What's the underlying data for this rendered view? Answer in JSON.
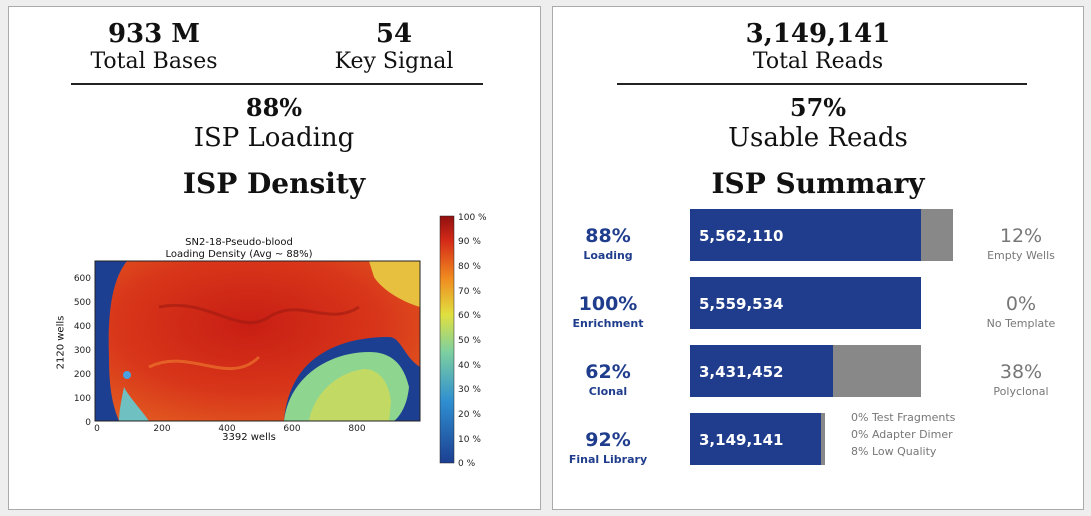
{
  "left_panel": {
    "total_bases": {
      "value": "933 M",
      "label": "Total Bases"
    },
    "key_signal": {
      "value": "54",
      "label": "Key Signal"
    },
    "isp_loading": {
      "value": "88%",
      "label": "ISP Loading"
    },
    "density_title": "ISP Density",
    "heatmap": {
      "title_line1": "SN2-18-Pseudo-blood",
      "title_line2": "Loading Density (Avg ~ 88%)",
      "xlabel": "3392 wells",
      "ylabel": "2120 wells",
      "x_ticks": [
        "0",
        "200",
        "400",
        "600",
        "800"
      ],
      "y_ticks": [
        "0",
        "100",
        "200",
        "300",
        "400",
        "500",
        "600"
      ],
      "colorbar_ticks": [
        "0 %",
        "10 %",
        "20 %",
        "30 %",
        "40 %",
        "50 %",
        "60 %",
        "70 %",
        "80 %",
        "90 %",
        "100 %"
      ],
      "colors": {
        "high": "#d42a18",
        "mid": "#f0b030",
        "low": "#7ed0a0",
        "empty": "#1c3f92"
      }
    }
  },
  "right_panel": {
    "total_reads": {
      "value": "3,149,141",
      "label": "Total Reads"
    },
    "usable_reads": {
      "value": "57%",
      "label": "Usable Reads"
    },
    "summary_title": "ISP Summary",
    "chart_data": {
      "type": "bar",
      "stacked": true,
      "categories": [
        "Loading",
        "Enrichment",
        "Clonal",
        "Final Library"
      ],
      "category_percent": [
        "88%",
        "100%",
        "62%",
        "92%"
      ],
      "values": [
        5562110,
        5559534,
        3431452,
        3149141
      ],
      "value_labels": [
        "5,562,110",
        "5,559,534",
        "3,431,452",
        "3,149,141"
      ],
      "complement_percent": [
        "12%",
        "0%",
        "38%",
        ""
      ],
      "complement_labels": [
        "Empty Wells",
        "No Template",
        "Polyclonal",
        ""
      ],
      "final_notes": [
        "0% Test Fragments",
        "0% Adapter Dimer",
        "8% Low Quality"
      ],
      "colors": {
        "primary": "#1f3d8c",
        "complement": "#888888"
      }
    }
  }
}
